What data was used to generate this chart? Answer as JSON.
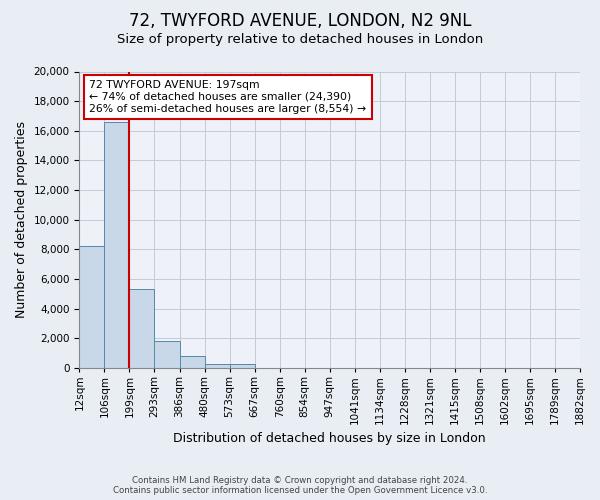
{
  "title": "72, TWYFORD AVENUE, LONDON, N2 9NL",
  "subtitle": "Size of property relative to detached houses in London",
  "xlabel": "Distribution of detached houses by size in London",
  "ylabel": "Number of detached properties",
  "bar_values": [
    8200,
    16600,
    5300,
    1850,
    780,
    300,
    250,
    0,
    0,
    0,
    0,
    0,
    0,
    0,
    0,
    0,
    0,
    0,
    0,
    0
  ],
  "bar_labels": [
    "12sqm",
    "106sqm",
    "199sqm",
    "293sqm",
    "386sqm",
    "480sqm",
    "573sqm",
    "667sqm",
    "760sqm",
    "854sqm",
    "947sqm",
    "1041sqm",
    "1134sqm",
    "1228sqm",
    "1321sqm",
    "1415sqm",
    "1508sqm",
    "1602sqm",
    "1695sqm",
    "1789sqm",
    "1882sqm"
  ],
  "bar_color": "#c8d8e8",
  "bar_edgecolor": "#5588aa",
  "vline_x": 2,
  "vline_color": "#cc0000",
  "ylim": [
    0,
    20000
  ],
  "yticks": [
    0,
    2000,
    4000,
    6000,
    8000,
    10000,
    12000,
    14000,
    16000,
    18000,
    20000
  ],
  "annotation_title": "72 TWYFORD AVENUE: 197sqm",
  "annotation_line1": "← 74% of detached houses are smaller (24,390)",
  "annotation_line2": "26% of semi-detached houses are larger (8,554) →",
  "annotation_box_color": "#ffffff",
  "annotation_box_edgecolor": "#cc0000",
  "footer_line1": "Contains HM Land Registry data © Crown copyright and database right 2024.",
  "footer_line2": "Contains public sector information licensed under the Open Government Licence v3.0.",
  "background_color": "#e8eef4",
  "plot_background": "#eef2f8",
  "grid_color": "#c0ccd8",
  "title_fontsize": 12,
  "subtitle_fontsize": 9.5,
  "axis_label_fontsize": 9,
  "tick_fontsize": 7.5
}
